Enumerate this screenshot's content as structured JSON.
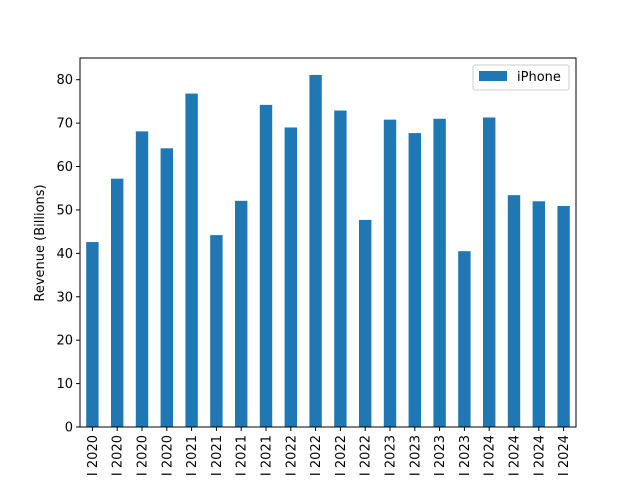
{
  "chart_data": {
    "type": "bar",
    "categories": [
      "I 2020",
      "I 2020",
      "I 2020",
      "I 2020",
      "I 2021",
      "I 2021",
      "I 2021",
      "I 2021",
      "I 2022",
      "I 2022",
      "I 2022",
      "I 2022",
      "I 2023",
      "I 2023",
      "I 2023",
      "I 2023",
      "I 2024",
      "I 2024",
      "I 2024",
      "I 2024"
    ],
    "series": [
      {
        "name": "iPhone",
        "values": [
          42.6,
          57.2,
          68.1,
          64.2,
          76.8,
          44.2,
          52.1,
          74.2,
          69.0,
          81.1,
          72.9,
          47.7,
          70.8,
          67.7,
          71.0,
          40.5,
          71.3,
          53.4,
          52.0,
          50.9
        ],
        "color": "#1f77b4"
      }
    ],
    "title": "",
    "xlabel": "",
    "ylabel": "Revenue (Billions)",
    "ylim": [
      0,
      85
    ],
    "yticks": [
      0,
      10,
      20,
      30,
      40,
      50,
      60,
      70,
      80
    ],
    "grid": false,
    "legend_position": "top-right"
  }
}
